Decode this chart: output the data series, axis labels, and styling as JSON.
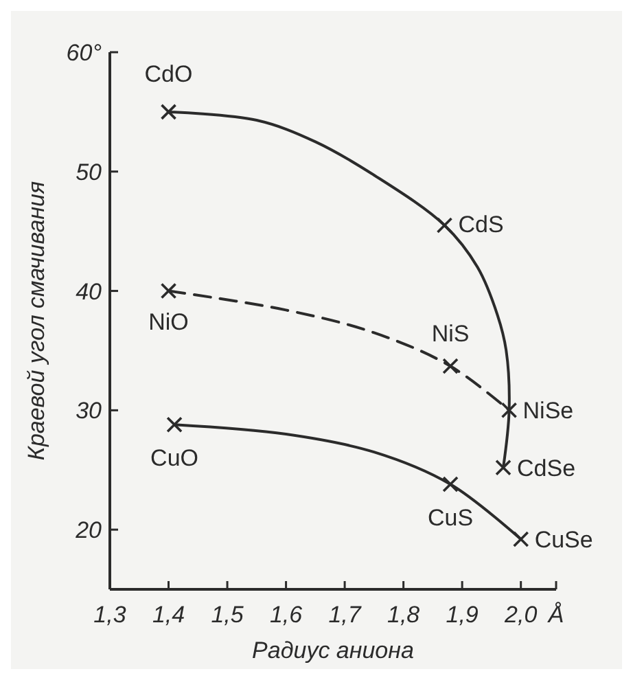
{
  "chart_data": {
    "type": "line",
    "xlabel": "Радиус аниона",
    "ylabel": "Краевой угол смачивания",
    "xlim": [
      1.3,
      2.06
    ],
    "ylim": [
      15,
      60
    ],
    "xticks": [
      {
        "value": 1.3,
        "label": "1,3"
      },
      {
        "value": 1.4,
        "label": "1,4"
      },
      {
        "value": 1.5,
        "label": "1,5"
      },
      {
        "value": 1.6,
        "label": "1,6"
      },
      {
        "value": 1.7,
        "label": "1,7"
      },
      {
        "value": 1.8,
        "label": "1,8"
      },
      {
        "value": 1.9,
        "label": "1,9"
      },
      {
        "value": 2.0,
        "label": "2,0"
      },
      {
        "value": 2.06,
        "label": "Å"
      }
    ],
    "yticks": [
      20,
      30,
      40,
      50,
      {
        "value": 60,
        "label": "60°"
      }
    ],
    "grid": false,
    "series": [
      {
        "color": "#2b2b2b",
        "line_style": "solid",
        "marker": "none",
        "x": [
          1.4,
          1.55,
          1.65,
          1.75,
          1.87,
          1.926,
          1.96,
          1.975,
          1.98,
          1.97
        ],
        "values": [
          55,
          54.3,
          52.5,
          49.7,
          45.5,
          42,
          38,
          35,
          30,
          25.2
        ]
      },
      {
        "color": "#2b2b2b",
        "line_style": "dashed",
        "marker": "none",
        "x": [
          1.4,
          1.6,
          1.75,
          1.88,
          1.98
        ],
        "values": [
          40,
          38.4,
          36.5,
          33.7,
          30
        ]
      },
      {
        "color": "#2b2b2b",
        "line_style": "solid",
        "marker": "none",
        "x": [
          1.41,
          1.6,
          1.75,
          1.88,
          2.0
        ],
        "values": [
          28.8,
          28,
          26.5,
          23.8,
          19.2
        ]
      },
      {
        "type": "scatter",
        "color": "#2b2b2b",
        "marker": "cross",
        "x": [
          1.4,
          1.87,
          1.4,
          1.88,
          1.98,
          1.97,
          1.41,
          1.88,
          2.0
        ],
        "values": [
          55,
          45.5,
          40,
          33.7,
          30,
          25.2,
          28.8,
          23.8,
          19.2
        ]
      }
    ],
    "annotations": [
      {
        "text": "CdO",
        "x": 1.4,
        "y": 55
      },
      {
        "text": "CdS",
        "x": 1.87,
        "y": 45.5
      },
      {
        "text": "NiO",
        "x": 1.4,
        "y": 40
      },
      {
        "text": "NiS",
        "x": 1.88,
        "y": 33.7
      },
      {
        "text": "NiSe",
        "x": 1.98,
        "y": 30
      },
      {
        "text": "CdSe",
        "x": 1.97,
        "y": 25.2
      },
      {
        "text": "CuO",
        "x": 1.41,
        "y": 28.8
      },
      {
        "text": "CuS",
        "x": 1.88,
        "y": 23.8
      },
      {
        "text": "CuSe",
        "x": 2.0,
        "y": 19.2
      }
    ]
  }
}
